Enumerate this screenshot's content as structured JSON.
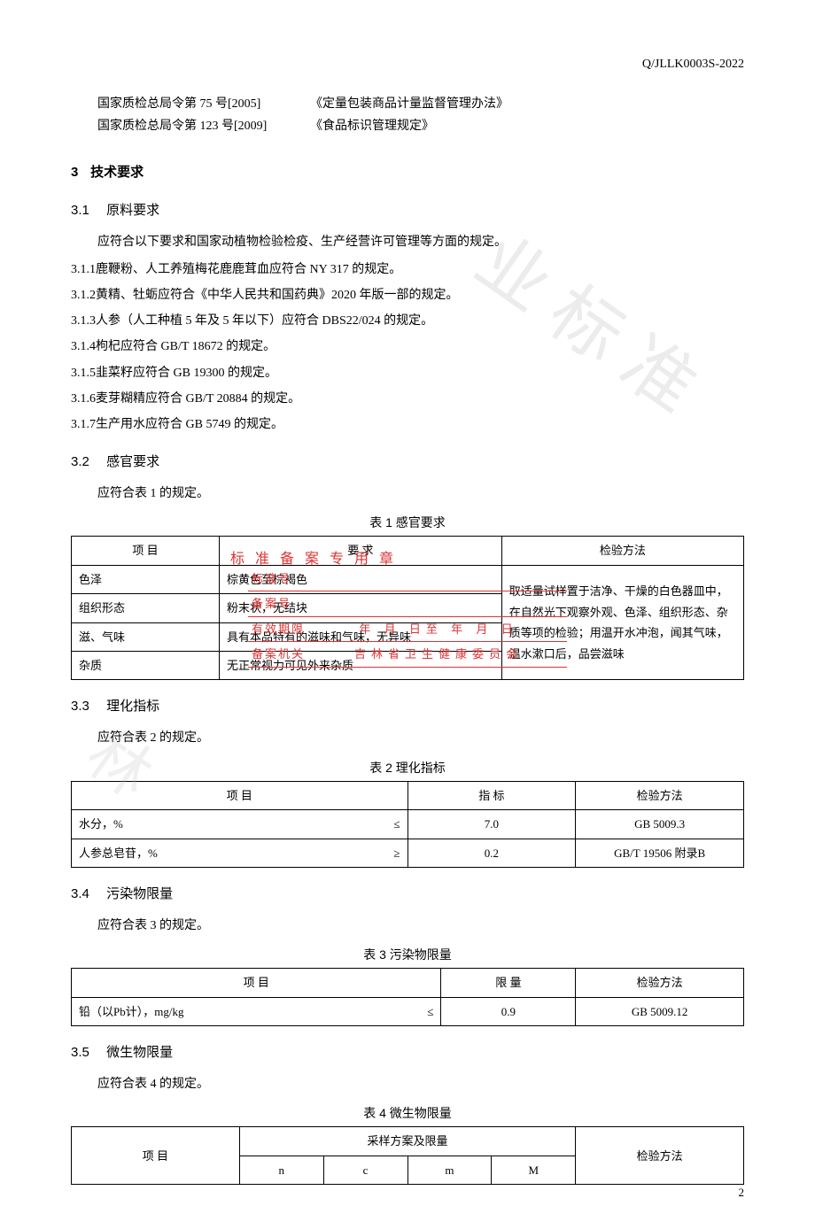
{
  "header": {
    "code": "Q/JLLK0003S-2022"
  },
  "refs": [
    {
      "left": "国家质检总局令第 75 号[2005]",
      "right": "《定量包装商品计量监督管理办法》"
    },
    {
      "left": "国家质检总局令第 123 号[2009]",
      "right": "《食品标识管理规定》"
    }
  ],
  "s3": {
    "num": "3",
    "title": "技术要求"
  },
  "s31": {
    "num": "3.1",
    "title": "原料要求",
    "intro": "应符合以下要求和国家动植物检验检疫、生产经营许可管理等方面的规定。",
    "items": [
      {
        "num": "3.1.1",
        "text": "鹿鞭粉、人工养殖梅花鹿鹿茸血应符合 NY 317 的规定。"
      },
      {
        "num": "3.1.2",
        "text": "黄精、牡蛎应符合《中华人民共和国药典》2020 年版一部的规定。"
      },
      {
        "num": "3.1.3",
        "text": "人参（人工种植 5 年及 5 年以下）应符合 DBS22/024 的规定。"
      },
      {
        "num": "3.1.4",
        "text": "枸杞应符合 GB/T 18672 的规定。"
      },
      {
        "num": "3.1.5",
        "text": "韭菜籽应符合 GB 19300 的规定。"
      },
      {
        "num": "3.1.6",
        "text": "麦芽糊精应符合 GB/T 20884 的规定。"
      },
      {
        "num": "3.1.7",
        "text": "生产用水应符合 GB 5749 的规定。"
      }
    ]
  },
  "s32": {
    "num": "3.2",
    "title": "感官要求",
    "intro": "应符合表 1 的规定。",
    "caption": "表 1  感官要求",
    "headers": {
      "c1": "项  目",
      "c2": "要  求",
      "c3": "检验方法"
    },
    "rows": [
      {
        "c1": "色泽",
        "c2": "棕黄色至棕褐色"
      },
      {
        "c1": "组织形态",
        "c2": "粉末状，无结块"
      },
      {
        "c1": "滋、气味",
        "c2": "具有本品特有的滋味和气味，无异味"
      },
      {
        "c1": "杂质",
        "c2": "无正常视力可见外来杂质"
      }
    ],
    "method": "取适量试样置于洁净、干燥的白色器皿中，在自然光下观察外观、色泽、组织形态、杂质等项的检验；用温开水冲泡，闻其气味，温水漱口后，品尝滋味"
  },
  "s33": {
    "num": "3.3",
    "title": "理化指标",
    "intro": "应符合表 2 的规定。",
    "caption": "表 2  理化指标",
    "headers": {
      "c1": "项  目",
      "c2": "指  标",
      "c3": "检验方法"
    },
    "rows": [
      {
        "name": "水分，%",
        "sym": "≤",
        "val": "7.0",
        "method": "GB 5009.3"
      },
      {
        "name": "人参总皂苷，%",
        "sym": "≥",
        "val": "0.2",
        "method": "GB/T 19506 附录B"
      }
    ]
  },
  "s34": {
    "num": "3.4",
    "title": "污染物限量",
    "intro": "应符合表 3 的规定。",
    "caption": "表 3  污染物限量",
    "headers": {
      "c1": "项  目",
      "c2": "限  量",
      "c3": "检验方法"
    },
    "rows": [
      {
        "name": "铅（以Pb计），mg/kg",
        "sym": "≤",
        "val": "0.9",
        "method": "GB 5009.12"
      }
    ]
  },
  "s35": {
    "num": "3.5",
    "title": "微生物限量",
    "intro": "应符合表 4 的规定。",
    "caption": "表 4  微生物限量",
    "headers": {
      "c1": "项  目",
      "c2": "采样方案及限量",
      "c3": "检验方法"
    },
    "sub": {
      "a": "n",
      "b": "c",
      "c": "m",
      "d": "M"
    }
  },
  "stamp": {
    "title": "标准备案专用章",
    "rows": [
      {
        "label": "标准号",
        "val": ""
      },
      {
        "label": "备案号",
        "val": ""
      },
      {
        "label": "有效期限",
        "val": "年 月 日至 年 月 日"
      },
      {
        "label": "备案机关",
        "val": "吉林省卫生健康委员会"
      }
    ]
  },
  "watermark": {
    "w1": "业标准",
    "w2": "林"
  },
  "pageNum": "2"
}
